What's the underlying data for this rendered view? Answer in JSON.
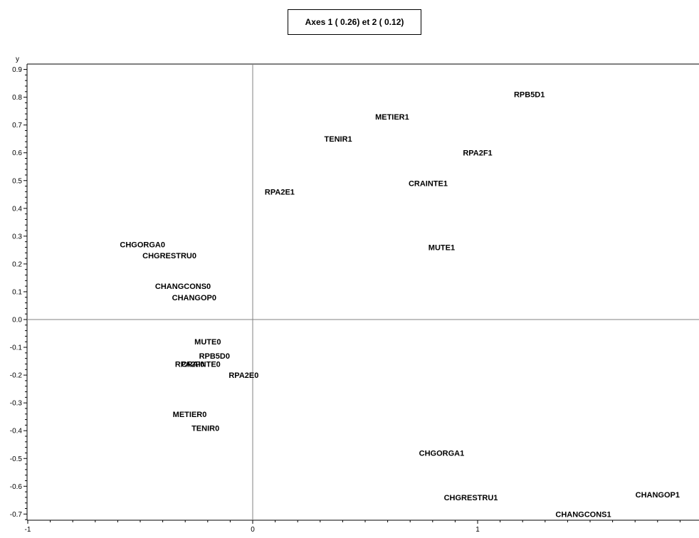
{
  "chart_data": {
    "type": "scatter",
    "title": "Axes 1 ( 0.26) et 2 ( 0.12)",
    "ylabel": "y",
    "xlabel": "",
    "xlim": [
      -1,
      2.0
    ],
    "ylim": [
      -0.72,
      0.9
    ],
    "x_ticks": [
      -1,
      0,
      1
    ],
    "y_ticks": [
      0.9,
      0.8,
      0.7,
      0.6,
      0.5,
      0.4,
      0.3,
      0.2,
      0.1,
      0.0,
      -0.1,
      -0.2,
      -0.3,
      -0.4,
      -0.5,
      -0.6,
      -0.7
    ],
    "y_tick_labels": [
      "0.9",
      "0.8",
      "0.7",
      "0.6",
      "0.5",
      "0.4",
      "0.3",
      "0.2",
      "0.1",
      "0.0",
      "-0.1",
      "-0.2",
      "-0.3",
      "-0.4",
      "-0.5",
      "-0.6",
      "-0.7"
    ],
    "x_tick_labels": [
      "-1",
      "0",
      "1"
    ],
    "reference_lines": {
      "x": 0,
      "y": 0
    },
    "grid": false,
    "points": [
      {
        "label": "RPB5D1",
        "x": 1.23,
        "y": 0.81
      },
      {
        "label": "METIER1",
        "x": 0.62,
        "y": 0.73
      },
      {
        "label": "TENIR1",
        "x": 0.38,
        "y": 0.65
      },
      {
        "label": "RPA2F1",
        "x": 1.0,
        "y": 0.6
      },
      {
        "label": "CRAINTE1",
        "x": 0.78,
        "y": 0.49
      },
      {
        "label": "RPA2E1",
        "x": 0.12,
        "y": 0.46
      },
      {
        "label": "MUTE1",
        "x": 0.84,
        "y": 0.26
      },
      {
        "label": "CHGORGA0",
        "x": -0.49,
        "y": 0.27
      },
      {
        "label": "CHGRESTRU0",
        "x": -0.37,
        "y": 0.23
      },
      {
        "label": "CHANGCONS0",
        "x": -0.31,
        "y": 0.12
      },
      {
        "label": "CHANGOP0",
        "x": -0.26,
        "y": 0.08
      },
      {
        "label": "MUTE0",
        "x": -0.2,
        "y": -0.08
      },
      {
        "label": "RPB5D0",
        "x": -0.17,
        "y": -0.13
      },
      {
        "label": "CRAINTE0",
        "x": -0.23,
        "y": -0.16
      },
      {
        "label": "RPA2F0",
        "x": -0.28,
        "y": -0.16
      },
      {
        "label": "RPA2E0",
        "x": -0.04,
        "y": -0.2
      },
      {
        "label": "METIER0",
        "x": -0.28,
        "y": -0.34
      },
      {
        "label": "TENIR0",
        "x": -0.21,
        "y": -0.39
      },
      {
        "label": "CHGORGA1",
        "x": 0.84,
        "y": -0.48
      },
      {
        "label": "CHGRESTRU1",
        "x": 0.97,
        "y": -0.64
      },
      {
        "label": "CHANGOP1",
        "x": 1.8,
        "y": -0.63
      },
      {
        "label": "CHANGCONS1",
        "x": 1.47,
        "y": -0.7
      }
    ]
  },
  "colors": {
    "background": "#ffffff",
    "axis": "#000000",
    "reference_line": "#808080",
    "text": "#000000"
  }
}
